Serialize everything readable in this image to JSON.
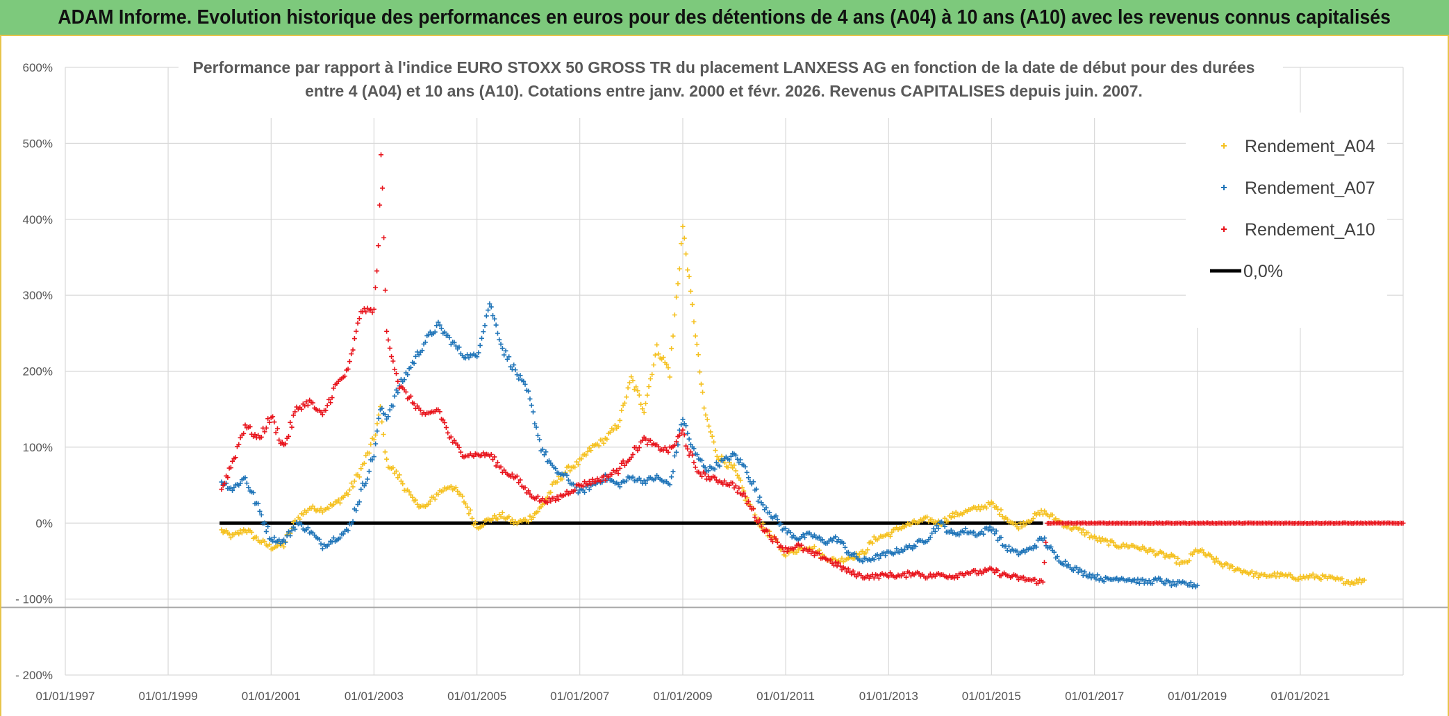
{
  "banner": {
    "title": "ADAM Informe. Evolution historique des performances en euros pour des détentions de 4 ans (A04) à 10 ans (A10) avec les revenus connus capitalisés"
  },
  "chart_data": {
    "type": "scatter",
    "title_line1": "Performance par rapport à l'indice EURO STOXX 50 GROSS TR  du placement LANXESS AG en fonction de la date de début pour des durées",
    "title_line2": "entre 4 (A04) et 10 ans (A10). Cotations entre janv. 2000 et févr. 2026. Revenus CAPITALISES depuis juin. 2007.",
    "xlabel": "",
    "ylabel": "",
    "xlim": [
      "1997-01-01",
      "2023-01-01"
    ],
    "ylim": [
      -200,
      600
    ],
    "grid": true,
    "legend_position": "top-right",
    "y_ticks": [
      {
        "value": 600,
        "label": "600%"
      },
      {
        "value": 500,
        "label": "500%"
      },
      {
        "value": 400,
        "label": "400%"
      },
      {
        "value": 300,
        "label": "300%"
      },
      {
        "value": 200,
        "label": "200%"
      },
      {
        "value": 100,
        "label": "100%"
      },
      {
        "value": 0,
        "label": "0%"
      },
      {
        "value": -100,
        "label": "- 100%"
      },
      {
        "value": -200,
        "label": "- 200%"
      }
    ],
    "x_ticks": [
      {
        "value": "1997-01-01",
        "label": "01/01/1997"
      },
      {
        "value": "1999-01-01",
        "label": "01/01/1999"
      },
      {
        "value": "2001-01-01",
        "label": "01/01/2001"
      },
      {
        "value": "2003-01-01",
        "label": "01/01/2003"
      },
      {
        "value": "2005-01-01",
        "label": "01/01/2005"
      },
      {
        "value": "2007-01-01",
        "label": "01/01/2007"
      },
      {
        "value": "2009-01-01",
        "label": "01/01/2009"
      },
      {
        "value": "2011-01-01",
        "label": "01/01/2011"
      },
      {
        "value": "2013-01-01",
        "label": "01/01/2013"
      },
      {
        "value": "2015-01-01",
        "label": "01/01/2015"
      },
      {
        "value": "2017-01-01",
        "label": "01/01/2017"
      },
      {
        "value": "2019-01-01",
        "label": "01/01/2019"
      },
      {
        "value": "2021-01-01",
        "label": "01/01/2021"
      }
    ],
    "series": [
      {
        "name": "Rendement_A04",
        "color": "#f5c120",
        "marker": "plus",
        "points": [
          [
            "2000-01-15",
            -10
          ],
          [
            "2000-04-01",
            -18
          ],
          [
            "2000-07-01",
            -8
          ],
          [
            "2000-10-01",
            -22
          ],
          [
            "2001-01-01",
            -32
          ],
          [
            "2001-04-01",
            -28
          ],
          [
            "2001-07-01",
            5
          ],
          [
            "2001-10-01",
            20
          ],
          [
            "2002-01-01",
            18
          ],
          [
            "2002-04-01",
            25
          ],
          [
            "2002-07-01",
            40
          ],
          [
            "2002-10-01",
            70
          ],
          [
            "2003-01-01",
            110
          ],
          [
            "2003-02-15",
            150
          ],
          [
            "2003-04-01",
            80
          ],
          [
            "2003-07-01",
            60
          ],
          [
            "2003-10-01",
            30
          ],
          [
            "2004-01-01",
            20
          ],
          [
            "2004-04-01",
            40
          ],
          [
            "2004-07-01",
            50
          ],
          [
            "2004-10-01",
            30
          ],
          [
            "2005-01-01",
            -5
          ],
          [
            "2005-04-01",
            5
          ],
          [
            "2005-07-01",
            10
          ],
          [
            "2005-10-01",
            0
          ],
          [
            "2006-01-01",
            5
          ],
          [
            "2006-04-01",
            20
          ],
          [
            "2006-07-01",
            50
          ],
          [
            "2006-10-01",
            70
          ],
          [
            "2007-01-01",
            80
          ],
          [
            "2007-04-01",
            100
          ],
          [
            "2007-07-01",
            110
          ],
          [
            "2007-10-01",
            130
          ],
          [
            "2008-01-01",
            190
          ],
          [
            "2008-04-01",
            150
          ],
          [
            "2008-07-01",
            230
          ],
          [
            "2008-10-01",
            200
          ],
          [
            "2009-01-01",
            390
          ],
          [
            "2009-02-15",
            320
          ],
          [
            "2009-04-01",
            250
          ],
          [
            "2009-06-01",
            150
          ],
          [
            "2009-09-01",
            90
          ],
          [
            "2010-01-01",
            70
          ],
          [
            "2010-04-01",
            30
          ],
          [
            "2010-07-01",
            0
          ],
          [
            "2010-10-01",
            -20
          ],
          [
            "2011-01-01",
            -40
          ],
          [
            "2011-04-01",
            -35
          ],
          [
            "2011-07-01",
            -30
          ],
          [
            "2011-10-01",
            -45
          ],
          [
            "2012-01-01",
            -50
          ],
          [
            "2012-04-01",
            -45
          ],
          [
            "2012-07-01",
            -40
          ],
          [
            "2012-10-01",
            -20
          ],
          [
            "2013-01-01",
            -15
          ],
          [
            "2013-04-01",
            -5
          ],
          [
            "2013-07-01",
            0
          ],
          [
            "2013-10-01",
            5
          ],
          [
            "2014-01-01",
            0
          ],
          [
            "2014-04-01",
            10
          ],
          [
            "2014-07-01",
            15
          ],
          [
            "2014-10-01",
            20
          ],
          [
            "2015-01-01",
            25
          ],
          [
            "2015-04-01",
            10
          ],
          [
            "2015-07-01",
            -5
          ],
          [
            "2015-10-01",
            5
          ],
          [
            "2016-01-01",
            15
          ],
          [
            "2016-04-01",
            5
          ],
          [
            "2016-07-01",
            -5
          ],
          [
            "2016-10-01",
            -10
          ],
          [
            "2017-01-01",
            -20
          ],
          [
            "2017-04-01",
            -25
          ],
          [
            "2017-07-01",
            -30
          ],
          [
            "2017-10-01",
            -30
          ],
          [
            "2018-01-01",
            -35
          ],
          [
            "2018-04-01",
            -40
          ],
          [
            "2018-07-01",
            -45
          ],
          [
            "2018-10-01",
            -55
          ],
          [
            "2019-01-01",
            -35
          ],
          [
            "2019-04-01",
            -45
          ],
          [
            "2019-07-01",
            -55
          ],
          [
            "2019-10-01",
            -60
          ],
          [
            "2020-01-01",
            -65
          ],
          [
            "2020-04-01",
            -70
          ],
          [
            "2020-07-01",
            -68
          ],
          [
            "2020-10-01",
            -70
          ],
          [
            "2021-01-01",
            -72
          ],
          [
            "2021-04-01",
            -70
          ],
          [
            "2021-07-01",
            -72
          ],
          [
            "2021-10-01",
            -75
          ],
          [
            "2022-01-01",
            -78
          ],
          [
            "2022-04-01",
            -75
          ]
        ]
      },
      {
        "name": "Rendement_A07",
        "color": "#1f74b8",
        "marker": "plus",
        "points": [
          [
            "2000-01-15",
            55
          ],
          [
            "2000-04-01",
            45
          ],
          [
            "2000-07-01",
            60
          ],
          [
            "2000-10-01",
            20
          ],
          [
            "2001-01-01",
            -20
          ],
          [
            "2001-04-01",
            -25
          ],
          [
            "2001-07-01",
            0
          ],
          [
            "2001-10-01",
            -10
          ],
          [
            "2002-01-01",
            -30
          ],
          [
            "2002-04-01",
            -20
          ],
          [
            "2002-07-01",
            -10
          ],
          [
            "2002-10-01",
            40
          ],
          [
            "2003-01-01",
            90
          ],
          [
            "2003-02-15",
            150
          ],
          [
            "2003-04-01",
            140
          ],
          [
            "2003-07-01",
            180
          ],
          [
            "2003-10-01",
            210
          ],
          [
            "2004-01-01",
            240
          ],
          [
            "2004-04-01",
            260
          ],
          [
            "2004-07-01",
            240
          ],
          [
            "2004-10-01",
            220
          ],
          [
            "2005-01-01",
            220
          ],
          [
            "2005-04-01",
            290
          ],
          [
            "2005-07-01",
            230
          ],
          [
            "2005-10-01",
            200
          ],
          [
            "2006-01-01",
            170
          ],
          [
            "2006-04-01",
            100
          ],
          [
            "2006-07-01",
            70
          ],
          [
            "2006-10-01",
            60
          ],
          [
            "2007-01-01",
            40
          ],
          [
            "2007-04-01",
            50
          ],
          [
            "2007-07-01",
            60
          ],
          [
            "2007-10-01",
            50
          ],
          [
            "2008-01-01",
            60
          ],
          [
            "2008-04-01",
            55
          ],
          [
            "2008-07-01",
            60
          ],
          [
            "2008-10-01",
            50
          ],
          [
            "2009-01-01",
            140
          ],
          [
            "2009-02-15",
            110
          ],
          [
            "2009-04-01",
            90
          ],
          [
            "2009-07-01",
            70
          ],
          [
            "2009-10-01",
            80
          ],
          [
            "2010-01-01",
            90
          ],
          [
            "2010-04-01",
            70
          ],
          [
            "2010-07-01",
            30
          ],
          [
            "2010-10-01",
            10
          ],
          [
            "2011-01-01",
            -10
          ],
          [
            "2011-04-01",
            -20
          ],
          [
            "2011-07-01",
            -15
          ],
          [
            "2011-10-01",
            -25
          ],
          [
            "2012-01-01",
            -20
          ],
          [
            "2012-04-01",
            -40
          ],
          [
            "2012-07-01",
            -50
          ],
          [
            "2012-10-01",
            -45
          ],
          [
            "2013-01-01",
            -40
          ],
          [
            "2013-04-01",
            -35
          ],
          [
            "2013-07-01",
            -30
          ],
          [
            "2013-10-01",
            -20
          ],
          [
            "2014-01-01",
            0
          ],
          [
            "2014-04-01",
            -15
          ],
          [
            "2014-07-01",
            -10
          ],
          [
            "2014-10-01",
            -15
          ],
          [
            "2015-01-01",
            -5
          ],
          [
            "2015-04-01",
            -30
          ],
          [
            "2015-07-01",
            -40
          ],
          [
            "2015-10-01",
            -35
          ],
          [
            "2016-01-01",
            -20
          ],
          [
            "2016-04-01",
            -45
          ],
          [
            "2016-07-01",
            -55
          ],
          [
            "2016-10-01",
            -65
          ],
          [
            "2017-01-01",
            -70
          ],
          [
            "2017-04-01",
            -75
          ],
          [
            "2017-07-01",
            -72
          ],
          [
            "2017-10-01",
            -75
          ],
          [
            "2018-01-01",
            -78
          ],
          [
            "2018-04-01",
            -75
          ],
          [
            "2018-07-01",
            -80
          ],
          [
            "2018-10-01",
            -80
          ],
          [
            "2019-01-01",
            -82
          ]
        ]
      },
      {
        "name": "Rendement_A10",
        "color": "#e8141c",
        "marker": "plus",
        "points": [
          [
            "2000-01-15",
            45
          ],
          [
            "2000-04-01",
            80
          ],
          [
            "2000-07-01",
            130
          ],
          [
            "2000-10-01",
            110
          ],
          [
            "2001-01-01",
            140
          ],
          [
            "2001-04-01",
            100
          ],
          [
            "2001-07-01",
            150
          ],
          [
            "2001-10-01",
            160
          ],
          [
            "2002-01-01",
            140
          ],
          [
            "2002-04-01",
            180
          ],
          [
            "2002-07-01",
            200
          ],
          [
            "2002-10-01",
            280
          ],
          [
            "2003-01-01",
            280
          ],
          [
            "2003-02-01",
            360
          ],
          [
            "2003-02-20",
            490
          ],
          [
            "2003-04-01",
            250
          ],
          [
            "2003-07-01",
            180
          ],
          [
            "2003-10-01",
            160
          ],
          [
            "2004-01-01",
            140
          ],
          [
            "2004-04-01",
            150
          ],
          [
            "2004-07-01",
            110
          ],
          [
            "2004-10-01",
            90
          ],
          [
            "2005-01-01",
            90
          ],
          [
            "2005-04-01",
            90
          ],
          [
            "2005-07-01",
            70
          ],
          [
            "2005-10-01",
            60
          ],
          [
            "2006-01-01",
            40
          ],
          [
            "2006-04-01",
            30
          ],
          [
            "2006-07-01",
            30
          ],
          [
            "2006-10-01",
            40
          ],
          [
            "2007-01-01",
            50
          ],
          [
            "2007-04-01",
            55
          ],
          [
            "2007-07-01",
            60
          ],
          [
            "2007-10-01",
            70
          ],
          [
            "2008-01-01",
            90
          ],
          [
            "2008-04-01",
            110
          ],
          [
            "2008-07-01",
            100
          ],
          [
            "2008-10-01",
            95
          ],
          [
            "2009-01-01",
            120
          ],
          [
            "2009-04-01",
            70
          ],
          [
            "2009-07-01",
            60
          ],
          [
            "2009-10-01",
            55
          ],
          [
            "2010-01-01",
            50
          ],
          [
            "2010-04-01",
            30
          ],
          [
            "2010-07-01",
            0
          ],
          [
            "2010-10-01",
            -20
          ],
          [
            "2011-01-01",
            -35
          ],
          [
            "2011-04-01",
            -30
          ],
          [
            "2011-07-01",
            -40
          ],
          [
            "2011-10-01",
            -45
          ],
          [
            "2012-01-01",
            -55
          ],
          [
            "2012-04-01",
            -65
          ],
          [
            "2012-07-01",
            -70
          ],
          [
            "2012-10-01",
            -70
          ],
          [
            "2013-01-01",
            -68
          ],
          [
            "2013-04-01",
            -70
          ],
          [
            "2013-07-01",
            -65
          ],
          [
            "2013-10-01",
            -70
          ],
          [
            "2014-01-01",
            -68
          ],
          [
            "2014-04-01",
            -70
          ],
          [
            "2014-07-01",
            -65
          ],
          [
            "2014-10-01",
            -65
          ],
          [
            "2015-01-01",
            -62
          ],
          [
            "2015-04-01",
            -68
          ],
          [
            "2015-07-01",
            -72
          ],
          [
            "2015-10-01",
            -75
          ],
          [
            "2016-01-01",
            -78
          ],
          [
            "2016-02-01",
            0
          ],
          [
            "2016-07-01",
            0
          ],
          [
            "2017-01-01",
            0
          ],
          [
            "2017-07-01",
            0
          ],
          [
            "2018-01-01",
            0
          ],
          [
            "2018-07-01",
            0
          ],
          [
            "2019-01-01",
            0
          ],
          [
            "2019-07-01",
            0
          ],
          [
            "2020-01-01",
            0
          ],
          [
            "2020-07-01",
            0
          ],
          [
            "2021-01-01",
            0
          ],
          [
            "2021-07-01",
            0
          ],
          [
            "2022-01-01",
            0
          ],
          [
            "2022-07-01",
            0
          ],
          [
            "2023-01-01",
            0
          ]
        ]
      }
    ],
    "reference_line": {
      "name": "0,0%",
      "value": 0,
      "x_start": "2000-01-01",
      "x_end": "2016-01-01",
      "color": "#000000"
    },
    "extra_hline": {
      "value": -111,
      "color": "#a6a6a6"
    }
  }
}
